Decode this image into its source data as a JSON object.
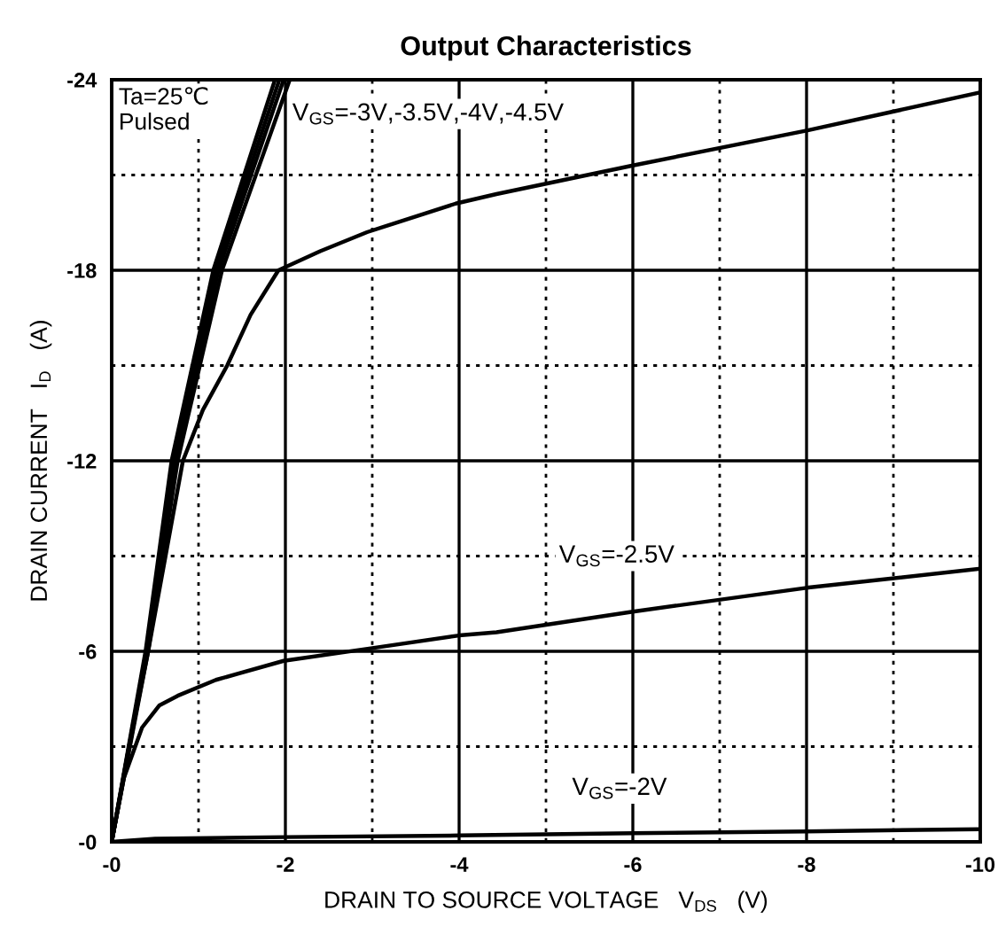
{
  "chart_data": {
    "type": "line",
    "title": "Output Characteristics",
    "xlabel": "DRAIN TO SOURCE VOLTAGE   V$_{DS}$   (V)",
    "ylabel": "DRAIN CURRENT   I$_{D}$   (A)",
    "xlim": [
      0,
      -10
    ],
    "ylim": [
      0,
      -24
    ],
    "xticks": [
      {
        "value": 0,
        "label": "-0"
      },
      {
        "value": -1,
        "label": null
      },
      -2,
      {
        "value": -3,
        "label": null
      },
      -4,
      {
        "value": -5,
        "label": null
      },
      -6,
      {
        "value": -7,
        "label": null
      },
      -8,
      {
        "value": -9,
        "label": null
      },
      -10
    ],
    "yticks": [
      {
        "value": 0,
        "label": "-0"
      },
      {
        "value": -3,
        "label": null
      },
      -6,
      {
        "value": -9,
        "label": null
      },
      -12,
      {
        "value": -15,
        "label": null
      },
      -18,
      {
        "value": -21,
        "label": null
      },
      -24
    ],
    "grid": true,
    "marker": "none",
    "line_style": "solid",
    "series": [
      {
        "color": "#000000",
        "x": [
          0,
          -0.39,
          -0.69,
          -1.17,
          -1.88
        ],
        "values": [
          0,
          -6,
          -12,
          -18,
          -24
        ]
      },
      {
        "color": "#000000",
        "x": [
          0,
          -0.4,
          -0.71,
          -1.2,
          -1.93
        ],
        "values": [
          0,
          -6,
          -12,
          -18,
          -24
        ]
      },
      {
        "color": "#000000",
        "x": [
          0,
          -0.41,
          -0.73,
          -1.23,
          -1.98
        ],
        "values": [
          0,
          -6,
          -12,
          -18,
          -24
        ]
      },
      {
        "color": "#000000",
        "x": [
          0,
          -0.42,
          -0.76,
          -1.27,
          -2.05
        ],
        "values": [
          0,
          -6,
          -12,
          -18,
          -24
        ]
      },
      {
        "color": "#000000",
        "x": [
          0,
          -0.2,
          -0.42,
          -0.62,
          -0.82,
          -1.05,
          -1.33,
          -1.6,
          -1.92,
          -2.4,
          -2.94,
          -3.96,
          -4.43,
          -6,
          -8,
          -10
        ],
        "values": [
          0,
          -3,
          -6,
          -9,
          -12,
          -13.6,
          -15,
          -16.6,
          -18,
          -18.6,
          -19.2,
          -20.1,
          -20.4,
          -21.3,
          -22.4,
          -23.6
        ]
      },
      {
        "color": "#000000",
        "x": [
          0,
          -0.14,
          -0.35,
          -0.55,
          -0.76,
          -1.2,
          -1.98,
          -3.0,
          -4.0,
          -4.43,
          -6,
          -8,
          -10
        ],
        "values": [
          0,
          -2,
          -3.6,
          -4.3,
          -4.6,
          -5.1,
          -5.7,
          -6.1,
          -6.5,
          -6.6,
          -7.25,
          -8.0,
          -8.6
        ]
      },
      {
        "color": "#000000",
        "x": [
          0,
          -0.5,
          -2,
          -4,
          -6,
          -8,
          -10
        ],
        "values": [
          0,
          -0.1,
          -0.15,
          -0.2,
          -0.27,
          -0.33,
          -0.4
        ]
      }
    ],
    "annotations": [
      "Ta=25℃\nPulsed",
      "V$_{GS}$=-3V,-3.5V,-4V,-4.5V",
      "V$_{GS}$=-2.5V",
      "V$_{GS}$=-2V"
    ]
  }
}
